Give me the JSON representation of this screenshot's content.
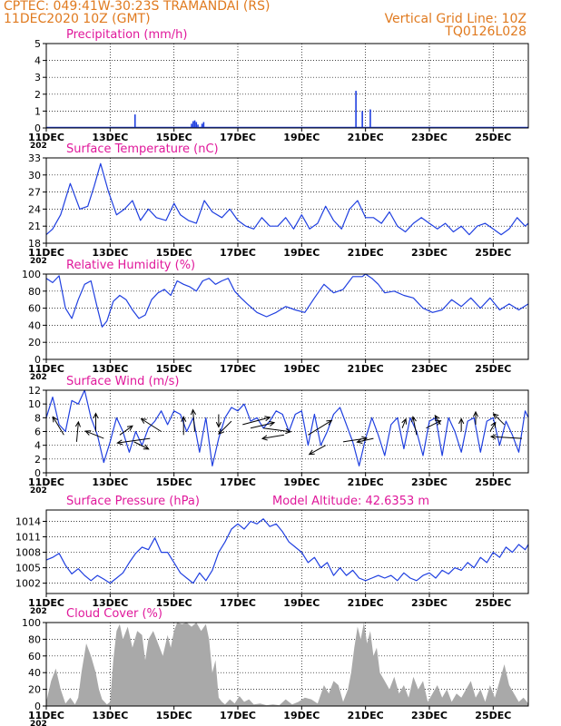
{
  "header": {
    "line1_left": "CPTEC:   049:41W-30:23S   TRAMANDAI (RS)",
    "line2_left": "11DEC2020 10Z (GMT)",
    "line2_right": "Vertical Grid Line: 10Z",
    "line3_right": "TQ0126L028",
    "model_altitude": "Model Altitude: 42.6353 m",
    "year_fragment": "202"
  },
  "colors": {
    "header": "#e07a1f",
    "title": "#e0189b",
    "series": "#1f3fe0",
    "cloud": "#a9a9a9",
    "grid": "#000000"
  },
  "x_axis": {
    "range_days": [
      11,
      26.1
    ],
    "tick_days": [
      11,
      13,
      15,
      17,
      19,
      21,
      23,
      25
    ],
    "tick_labels": [
      "11DEC",
      "13DEC",
      "15DEC",
      "17DEC",
      "19DEC",
      "21DEC",
      "23DEC",
      "25DEC"
    ]
  },
  "chart_data": [
    {
      "type": "bar",
      "title": "Precipitation (mm/h)",
      "ylim": [
        0,
        5
      ],
      "yticks": [
        0,
        1,
        2,
        3,
        4,
        5
      ],
      "ytick_labels": [
        "0",
        "1",
        "2",
        "3",
        "4",
        "5"
      ],
      "x_unit": "day of December 2020",
      "x": [
        13.78,
        15.55,
        15.6,
        15.65,
        15.7,
        15.75,
        15.88,
        15.93,
        20.7,
        20.9,
        21.15
      ],
      "values": [
        0.8,
        0.25,
        0.4,
        0.45,
        0.35,
        0.2,
        0.25,
        0.35,
        2.2,
        1.0,
        1.1
      ]
    },
    {
      "type": "line",
      "title": "Surface Temperature (nC)",
      "ylim": [
        18,
        33
      ],
      "yticks": [
        18,
        21,
        24,
        27,
        30,
        33
      ],
      "ytick_labels": [
        "18",
        "21",
        "24",
        "27",
        "30",
        "33"
      ],
      "x": [
        11.0,
        11.2,
        11.45,
        11.75,
        12.05,
        12.3,
        12.5,
        12.7,
        12.95,
        13.2,
        13.45,
        13.7,
        13.95,
        14.2,
        14.45,
        14.75,
        15.0,
        15.2,
        15.45,
        15.7,
        15.95,
        16.2,
        16.5,
        16.75,
        17.0,
        17.25,
        17.5,
        17.75,
        18.0,
        18.25,
        18.5,
        18.75,
        19.0,
        19.25,
        19.5,
        19.75,
        20.0,
        20.25,
        20.5,
        20.75,
        21.0,
        21.25,
        21.5,
        21.75,
        22.0,
        22.25,
        22.5,
        22.75,
        23.0,
        23.25,
        23.5,
        23.75,
        24.0,
        24.25,
        24.5,
        24.75,
        25.0,
        25.25,
        25.5,
        25.75,
        26.0,
        26.1
      ],
      "y": [
        19.5,
        20.5,
        23.0,
        28.5,
        24.0,
        24.5,
        28.0,
        32.0,
        27.0,
        23.0,
        24.0,
        25.5,
        22.0,
        24.0,
        22.5,
        22.0,
        25.0,
        23.0,
        22.0,
        21.5,
        25.5,
        23.5,
        22.5,
        24.0,
        22.0,
        21.0,
        20.5,
        22.5,
        21.0,
        21.0,
        22.5,
        20.5,
        23.0,
        20.5,
        21.5,
        24.5,
        22.0,
        20.5,
        24.0,
        25.5,
        22.5,
        22.5,
        21.5,
        23.5,
        21.0,
        20.0,
        21.5,
        22.5,
        21.5,
        20.5,
        21.5,
        20.0,
        21.0,
        19.5,
        21.0,
        21.5,
        20.5,
        19.5,
        20.5,
        22.5,
        21.0,
        21.5
      ]
    },
    {
      "type": "line",
      "title": "Relative Humidity (%)",
      "ylim": [
        0,
        100
      ],
      "yticks": [
        0,
        20,
        40,
        60,
        80,
        100
      ],
      "ytick_labels": [
        "0",
        "20",
        "40",
        "60",
        "80",
        "100"
      ],
      "x": [
        11.0,
        11.2,
        11.4,
        11.6,
        11.8,
        12.0,
        12.2,
        12.4,
        12.6,
        12.75,
        12.9,
        13.1,
        13.3,
        13.5,
        13.7,
        13.9,
        14.1,
        14.3,
        14.5,
        14.7,
        14.9,
        15.1,
        15.3,
        15.5,
        15.7,
        15.9,
        16.1,
        16.3,
        16.5,
        16.7,
        16.9,
        17.1,
        17.3,
        17.6,
        17.9,
        18.2,
        18.5,
        18.8,
        19.1,
        19.4,
        19.7,
        20.0,
        20.3,
        20.6,
        20.9,
        21.0,
        21.2,
        21.4,
        21.6,
        21.9,
        22.2,
        22.5,
        22.8,
        23.1,
        23.4,
        23.7,
        24.0,
        24.3,
        24.6,
        24.9,
        25.2,
        25.5,
        25.8,
        26.1
      ],
      "y": [
        95,
        90,
        98,
        60,
        48,
        70,
        88,
        92,
        60,
        38,
        45,
        68,
        75,
        70,
        58,
        48,
        52,
        70,
        78,
        82,
        75,
        92,
        88,
        85,
        80,
        92,
        95,
        88,
        92,
        95,
        80,
        72,
        65,
        55,
        50,
        55,
        62,
        58,
        55,
        72,
        88,
        78,
        82,
        97,
        97,
        100,
        95,
        88,
        78,
        80,
        75,
        72,
        60,
        55,
        58,
        70,
        62,
        72,
        60,
        72,
        58,
        65,
        58,
        65
      ]
    },
    {
      "type": "line",
      "title": "Surface Wind (m/s)",
      "ylim": [
        0,
        12
      ],
      "yticks": [
        0,
        2,
        4,
        6,
        8,
        10,
        12
      ],
      "ytick_labels": [
        "0",
        "2",
        "4",
        "6",
        "8",
        "10",
        "12"
      ],
      "x": [
        11.0,
        11.2,
        11.4,
        11.6,
        11.8,
        12.0,
        12.2,
        12.4,
        12.6,
        12.8,
        13.0,
        13.2,
        13.4,
        13.6,
        13.8,
        14.0,
        14.2,
        14.4,
        14.6,
        14.8,
        15.0,
        15.2,
        15.4,
        15.6,
        15.8,
        16.0,
        16.2,
        16.4,
        16.6,
        16.8,
        17.0,
        17.2,
        17.4,
        17.6,
        17.8,
        18.0,
        18.2,
        18.4,
        18.6,
        18.8,
        19.0,
        19.2,
        19.4,
        19.6,
        19.8,
        20.0,
        20.2,
        20.4,
        20.6,
        20.8,
        21.0,
        21.2,
        21.4,
        21.6,
        21.8,
        22.0,
        22.2,
        22.4,
        22.6,
        22.8,
        23.0,
        23.2,
        23.4,
        23.6,
        23.8,
        24.0,
        24.2,
        24.4,
        24.6,
        24.8,
        25.0,
        25.2,
        25.4,
        25.6,
        25.8,
        26.0,
        26.1
      ],
      "y": [
        8.0,
        11.0,
        7.0,
        6.0,
        10.5,
        10.0,
        12.0,
        8.0,
        5.5,
        1.5,
        4.5,
        8.0,
        6.0,
        3.0,
        6.0,
        4.0,
        6.5,
        7.5,
        9.0,
        7.0,
        9.0,
        8.5,
        6.0,
        8.0,
        3.0,
        8.0,
        1.0,
        5.0,
        8.0,
        9.5,
        9.0,
        10.0,
        7.5,
        8.0,
        6.5,
        7.5,
        9.0,
        8.5,
        6.0,
        8.5,
        9.0,
        4.0,
        8.5,
        4.0,
        6.0,
        8.5,
        9.5,
        7.0,
        4.5,
        1.0,
        5.0,
        8.0,
        5.5,
        2.5,
        7.0,
        8.0,
        3.5,
        8.0,
        6.0,
        2.5,
        7.5,
        8.0,
        2.5,
        8.0,
        6.0,
        3.0,
        7.5,
        8.0,
        3.0,
        7.5,
        8.0,
        4.0,
        7.5,
        5.5,
        3.0,
        9.0,
        8.0
      ],
      "arrows_note": "wind direction arrows",
      "arrows": [
        {
          "x": 11.55,
          "y": 5.5,
          "dx": -12,
          "dy": -20
        },
        {
          "x": 11.95,
          "y": 4.5,
          "dx": 2,
          "dy": -22
        },
        {
          "x": 12.55,
          "y": 6.0,
          "dx": 0,
          "dy": -20
        },
        {
          "x": 12.8,
          "y": 5.0,
          "dx": -20,
          "dy": -8
        },
        {
          "x": 13.3,
          "y": 5.5,
          "dx": 14,
          "dy": -10
        },
        {
          "x": 13.75,
          "y": 4.5,
          "dx": 16,
          "dy": 8
        },
        {
          "x": 14.25,
          "y": 5.0,
          "dx": -36,
          "dy": 5
        },
        {
          "x": 14.6,
          "y": 6.0,
          "dx": -22,
          "dy": -14
        },
        {
          "x": 15.3,
          "y": 5.5,
          "dx": 0,
          "dy": -20
        },
        {
          "x": 15.65,
          "y": 6.0,
          "dx": -2,
          "dy": -24
        },
        {
          "x": 16.4,
          "y": 8.5,
          "dx": 0,
          "dy": 14
        },
        {
          "x": 16.8,
          "y": 7.5,
          "dx": -14,
          "dy": 14
        },
        {
          "x": 17.15,
          "y": 7.0,
          "dx": 30,
          "dy": -8
        },
        {
          "x": 17.4,
          "y": 6.5,
          "dx": 26,
          "dy": -6
        },
        {
          "x": 17.8,
          "y": 6.5,
          "dx": 30,
          "dy": 4
        },
        {
          "x": 18.45,
          "y": 5.5,
          "dx": -24,
          "dy": 4
        },
        {
          "x": 19.2,
          "y": 5.5,
          "dx": 26,
          "dy": -16
        },
        {
          "x": 19.75,
          "y": 4.0,
          "dx": -18,
          "dy": 10
        },
        {
          "x": 20.3,
          "y": 4.5,
          "dx": 26,
          "dy": -4
        },
        {
          "x": 21.25,
          "y": 5.0,
          "dx": -18,
          "dy": 4
        },
        {
          "x": 22.15,
          "y": 6.5,
          "dx": 4,
          "dy": -10
        },
        {
          "x": 22.6,
          "y": 5.5,
          "dx": -4,
          "dy": -20
        },
        {
          "x": 22.9,
          "y": 6.5,
          "dx": 16,
          "dy": -8
        },
        {
          "x": 23.35,
          "y": 7.0,
          "dx": -6,
          "dy": -10
        },
        {
          "x": 24.0,
          "y": 6.0,
          "dx": 0,
          "dy": -14
        },
        {
          "x": 24.45,
          "y": 7.0,
          "dx": 0,
          "dy": -14
        },
        {
          "x": 24.9,
          "y": 6.0,
          "dx": 6,
          "dy": -10
        },
        {
          "x": 25.35,
          "y": 7.0,
          "dx": -12,
          "dy": -12
        },
        {
          "x": 25.9,
          "y": 5.0,
          "dx": -34,
          "dy": -2
        }
      ]
    },
    {
      "type": "line",
      "title": "Surface Pressure (hPa)",
      "ylim": [
        1000.0,
        1016.2
      ],
      "yticks": [
        1002,
        1005,
        1008,
        1011,
        1014
      ],
      "ytick_labels": [
        "1002",
        "1005",
        "1008",
        "1011",
        "1014"
      ],
      "x": [
        11.0,
        11.2,
        11.4,
        11.6,
        11.8,
        12.0,
        12.2,
        12.4,
        12.6,
        12.8,
        13.0,
        13.2,
        13.4,
        13.6,
        13.8,
        14.0,
        14.2,
        14.4,
        14.6,
        14.8,
        15.0,
        15.2,
        15.4,
        15.6,
        15.8,
        16.0,
        16.2,
        16.4,
        16.6,
        16.8,
        17.0,
        17.2,
        17.4,
        17.6,
        17.8,
        18.0,
        18.2,
        18.4,
        18.6,
        18.8,
        19.0,
        19.2,
        19.4,
        19.6,
        19.8,
        20.0,
        20.2,
        20.4,
        20.6,
        20.8,
        21.0,
        21.2,
        21.4,
        21.6,
        21.8,
        22.0,
        22.2,
        22.4,
        22.6,
        22.8,
        23.0,
        23.2,
        23.4,
        23.6,
        23.8,
        24.0,
        24.2,
        24.4,
        24.6,
        24.8,
        25.0,
        25.2,
        25.4,
        25.6,
        25.8,
        26.0,
        26.1
      ],
      "y": [
        1006.5,
        1007.0,
        1007.8,
        1005.5,
        1003.8,
        1004.8,
        1003.5,
        1002.5,
        1003.5,
        1002.8,
        1002.0,
        1003.0,
        1004.0,
        1006.0,
        1007.8,
        1009.0,
        1008.5,
        1010.8,
        1008.0,
        1008.0,
        1006.0,
        1004.0,
        1003.0,
        1002.0,
        1004.0,
        1002.5,
        1004.5,
        1008.0,
        1010.0,
        1012.5,
        1013.5,
        1012.5,
        1014.0,
        1013.5,
        1014.5,
        1013.0,
        1013.5,
        1012.0,
        1010.0,
        1009.0,
        1008.0,
        1006.0,
        1007.0,
        1005.0,
        1006.0,
        1003.5,
        1005.0,
        1003.5,
        1004.5,
        1003.0,
        1002.5,
        1003.0,
        1003.5,
        1003.0,
        1003.5,
        1002.5,
        1004.0,
        1003.0,
        1002.5,
        1003.5,
        1004.0,
        1003.0,
        1004.5,
        1003.8,
        1005.0,
        1004.5,
        1006.0,
        1005.0,
        1007.0,
        1006.0,
        1008.0,
        1007.0,
        1009.0,
        1008.0,
        1009.5,
        1008.5,
        1009.5
      ]
    },
    {
      "type": "area",
      "title": "Cloud Cover (%)",
      "ylim": [
        0,
        100
      ],
      "yticks": [
        0,
        20,
        40,
        60,
        80,
        100
      ],
      "ytick_labels": [
        "0",
        "20",
        "40",
        "60",
        "80",
        "100"
      ],
      "x": [
        11.0,
        11.15,
        11.3,
        11.45,
        11.6,
        11.75,
        11.9,
        12.0,
        12.1,
        12.25,
        12.4,
        12.55,
        12.65,
        12.75,
        12.9,
        13.0,
        13.1,
        13.2,
        13.3,
        13.4,
        13.55,
        13.7,
        13.85,
        14.0,
        14.1,
        14.2,
        14.35,
        14.5,
        14.65,
        14.8,
        14.9,
        15.0,
        15.1,
        15.25,
        15.4,
        15.55,
        15.7,
        15.85,
        16.0,
        16.1,
        16.2,
        16.3,
        16.4,
        16.5,
        16.6,
        16.75,
        16.9,
        17.05,
        17.2,
        17.35,
        17.5,
        17.7,
        17.9,
        18.1,
        18.3,
        18.5,
        18.7,
        18.9,
        19.1,
        19.3,
        19.5,
        19.7,
        19.85,
        20.0,
        20.15,
        20.3,
        20.45,
        20.55,
        20.65,
        20.75,
        20.85,
        20.95,
        21.05,
        21.15,
        21.25,
        21.35,
        21.45,
        21.6,
        21.75,
        21.9,
        22.05,
        22.2,
        22.35,
        22.5,
        22.65,
        22.8,
        22.95,
        23.1,
        23.25,
        23.4,
        23.55,
        23.7,
        23.85,
        24.0,
        24.15,
        24.3,
        24.45,
        24.6,
        24.75,
        24.9,
        25.05,
        25.2,
        25.35,
        25.5,
        25.65,
        25.8,
        25.95,
        26.1
      ],
      "y": [
        5,
        30,
        45,
        20,
        3,
        10,
        2,
        10,
        40,
        75,
        60,
        40,
        20,
        8,
        2,
        5,
        55,
        90,
        98,
        80,
        95,
        70,
        90,
        85,
        55,
        80,
        90,
        75,
        60,
        85,
        70,
        90,
        100,
        98,
        100,
        95,
        100,
        90,
        98,
        80,
        40,
        55,
        10,
        5,
        2,
        8,
        3,
        12,
        5,
        8,
        2,
        3,
        1,
        2,
        1,
        8,
        2,
        5,
        10,
        8,
        3,
        25,
        15,
        30,
        25,
        5,
        20,
        40,
        70,
        95,
        80,
        100,
        75,
        90,
        60,
        70,
        40,
        30,
        20,
        35,
        15,
        25,
        10,
        35,
        20,
        30,
        5,
        15,
        25,
        10,
        20,
        5,
        15,
        10,
        20,
        30,
        10,
        20,
        5,
        25,
        10,
        30,
        50,
        25,
        15,
        5,
        10,
        3
      ]
    }
  ]
}
